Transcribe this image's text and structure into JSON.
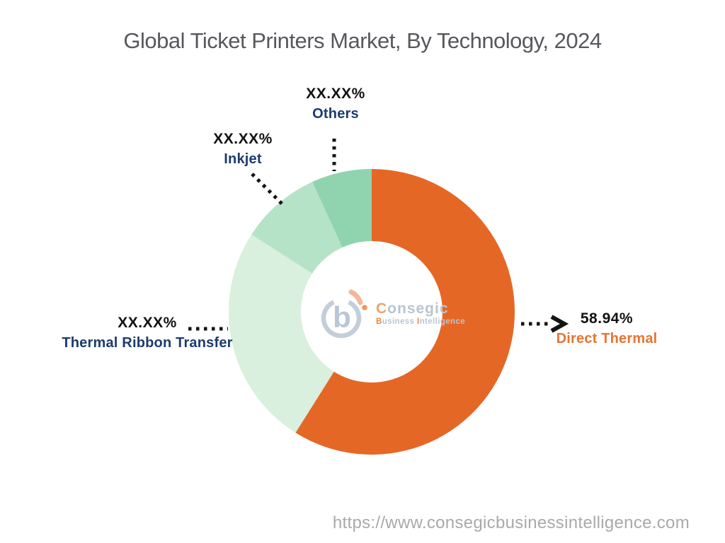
{
  "footer": {
    "url": "https://www.consegicbusinessintelligence.com"
  },
  "watermark": {
    "brand_initial": "C",
    "brand_rest": "onsegic",
    "tagline_word1_initial": "B",
    "tagline_word1_rest": "usiness",
    "tagline_word2_initial": "I",
    "tagline_word2_rest": "ntelligence"
  },
  "chart_data": {
    "type": "pie",
    "variant": "donut",
    "title": "Global Ticket Printers Market, By Technology, 2024",
    "legend_position": "callout-labels",
    "start_angle_deg": 0,
    "direction": "clockwise",
    "inner_radius_ratio": 0.495,
    "segments": [
      {
        "label": "Direct Thermal",
        "display_value": "58.94%",
        "value": 58.94,
        "color": "#e56726",
        "label_color": "#e87430"
      },
      {
        "label": "Thermal Ribbon Transfer",
        "display_value": "XX.XX%",
        "value": 25.17,
        "color": "#d8f0dd",
        "label_color": "#1b3c6e"
      },
      {
        "label": "Inkjet",
        "display_value": "XX.XX%",
        "value": 9.08,
        "color": "#b5e3c8",
        "label_color": "#1b3c6e"
      },
      {
        "label": "Others",
        "display_value": "XX.XX%",
        "value": 6.81,
        "color": "#8fd4ae",
        "label_color": "#1b3c6e"
      }
    ]
  }
}
